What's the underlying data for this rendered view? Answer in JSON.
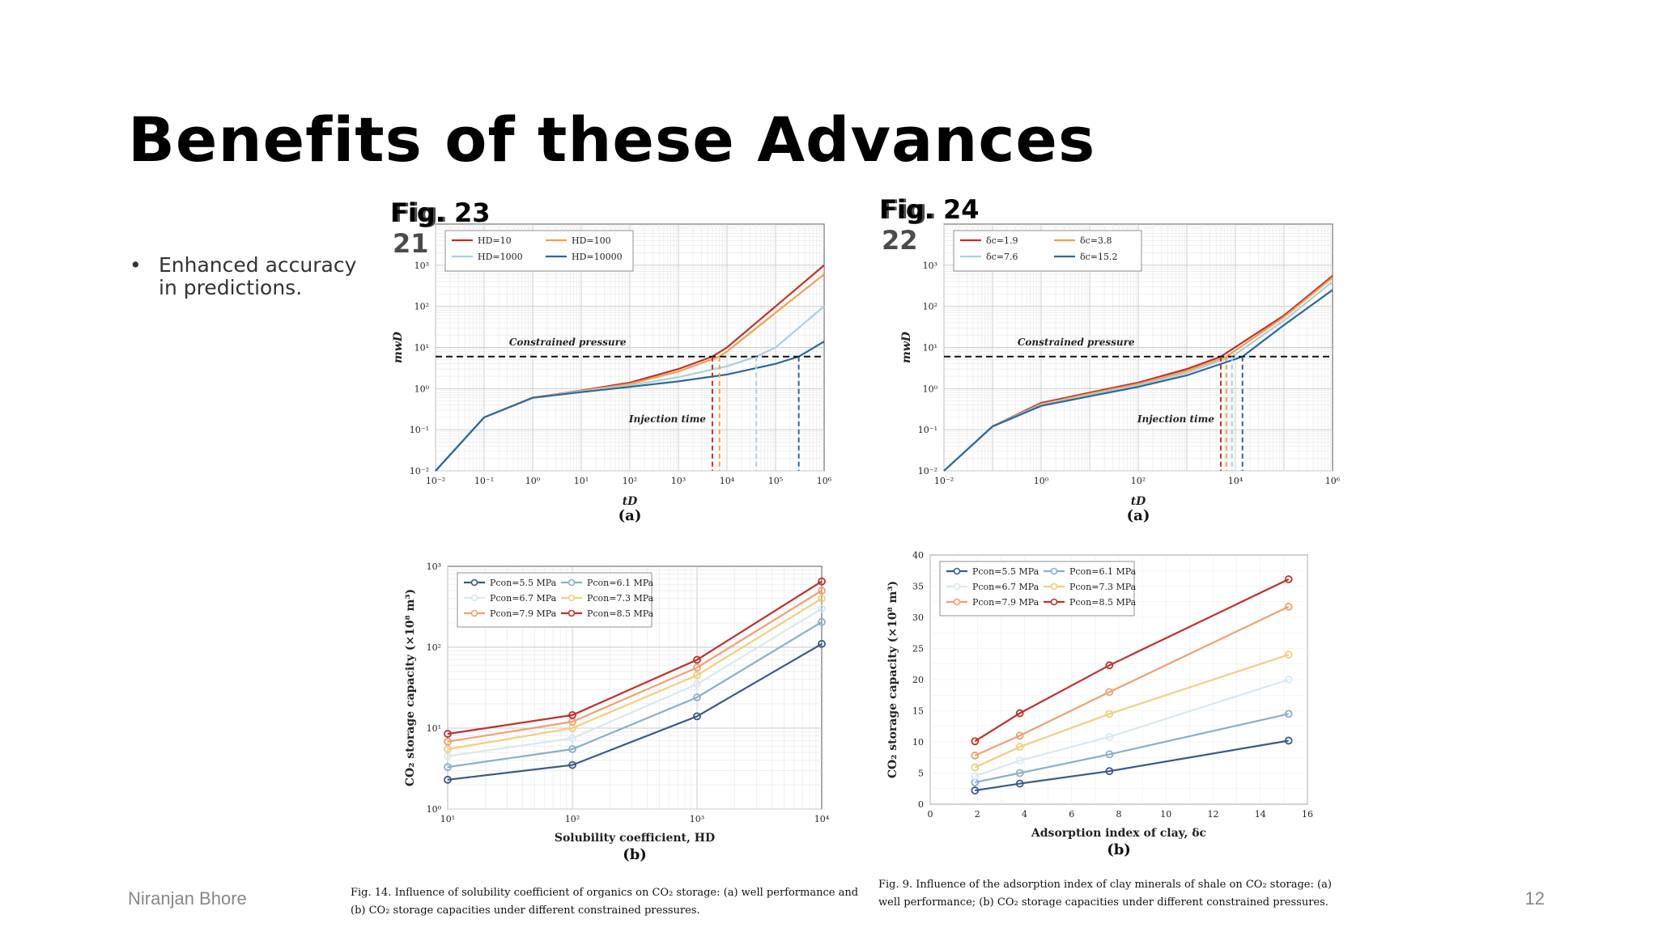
{
  "slide": {
    "title": "Benefits of these Advances",
    "bullet_symbol": "•",
    "bullets": [
      "Enhanced accuracy in predictions."
    ],
    "footer_author": "Niranjan Bhore",
    "page_number": "12",
    "fig_left_label": "Fig. 23",
    "fig_left_label_ghost": "Fig. 21",
    "fig_right_label": "Fig. 24",
    "fig_right_label_ghost": "Fig. 22",
    "caption_left": "Fig. 14. Influence of solubility coefficient of organics on CO₂ storage: (a) well performance and (b) CO₂ storage capacities under different constrained pressures.",
    "caption_right": "Fig. 9. Influence of the adsorption index of clay minerals of shale on CO₂ storage: (a) well performance; (b) CO₂ storage capacities under different constrained pressures."
  },
  "chart_data": [
    {
      "id": "tl",
      "type": "line",
      "subplot": "(a)",
      "xlabel": "tD",
      "ylabel": "mwD",
      "xscale": "log",
      "yscale": "log",
      "xlim": [
        0.01,
        1000000
      ],
      "ylim": [
        0.01,
        10000
      ],
      "xticks": [
        "10⁻²",
        "10⁻¹",
        "10⁰",
        "10¹",
        "10²",
        "10³",
        "10⁴",
        "10⁵",
        "10⁶"
      ],
      "yticks": [
        "10⁻²",
        "10⁻¹",
        "10⁰",
        "10¹",
        "10²",
        "10³"
      ],
      "legend": "top-left",
      "annotations": [
        "Constrained pressure",
        "Injection time"
      ],
      "constrained_pressure": 6,
      "series": [
        {
          "name": "HD=10",
          "color": "#c0302c",
          "x": [
            0.01,
            0.1,
            1,
            10,
            100,
            1000,
            5000,
            10000,
            100000,
            1000000
          ],
          "y": [
            0.01,
            0.2,
            0.6,
            0.9,
            1.4,
            3,
            6,
            10,
            100,
            1000
          ]
        },
        {
          "name": "HD=100",
          "color": "#f0a050",
          "x": [
            0.01,
            0.1,
            1,
            10,
            100,
            1000,
            7000,
            10000,
            100000,
            1000000
          ],
          "y": [
            0.01,
            0.2,
            0.6,
            0.88,
            1.3,
            2.6,
            6,
            8,
            70,
            600
          ]
        },
        {
          "name": "HD=1000",
          "color": "#a8d0e0",
          "x": [
            0.01,
            0.1,
            1,
            10,
            100,
            1000,
            10000,
            40000,
            100000,
            1000000
          ],
          "y": [
            0.01,
            0.2,
            0.6,
            0.85,
            1.2,
            1.9,
            3.5,
            6,
            10,
            100
          ]
        },
        {
          "name": "HD=10000",
          "color": "#2a6a9a",
          "x": [
            0.01,
            0.1,
            1,
            10,
            100,
            1000,
            10000,
            100000,
            300000,
            1000000
          ],
          "y": [
            0.01,
            0.2,
            0.6,
            0.82,
            1.1,
            1.5,
            2.2,
            4,
            6,
            14
          ]
        }
      ],
      "injection_times": [
        5000,
        7000,
        40000,
        300000
      ]
    },
    {
      "id": "tr",
      "type": "line",
      "subplot": "(a)",
      "xlabel": "tD",
      "ylabel": "mwD",
      "xscale": "log",
      "yscale": "log",
      "xlim": [
        0.01,
        1000000
      ],
      "ylim": [
        0.01,
        10000
      ],
      "xticks": [
        "10⁻²",
        "10⁰",
        "10²",
        "10⁴",
        "10⁶"
      ],
      "yticks": [
        "10⁻²",
        "10⁻¹",
        "10⁰",
        "10¹",
        "10²",
        "10³"
      ],
      "legend": "top-left",
      "annotations": [
        "Constrained pressure",
        "Injection time"
      ],
      "constrained_pressure": 6,
      "series": [
        {
          "name": "δc=1.9",
          "color": "#c0302c",
          "x": [
            0.01,
            0.1,
            1,
            10,
            100,
            1000,
            5000,
            100000,
            1000000
          ],
          "y": [
            0.01,
            0.12,
            0.45,
            0.8,
            1.4,
            3,
            6,
            60,
            550
          ]
        },
        {
          "name": "δc=3.8",
          "color": "#f0a050",
          "x": [
            0.01,
            0.1,
            1,
            10,
            100,
            1000,
            6500,
            100000,
            1000000
          ],
          "y": [
            0.01,
            0.12,
            0.42,
            0.75,
            1.3,
            2.7,
            6,
            55,
            500
          ]
        },
        {
          "name": "δc=7.6",
          "color": "#a8d0e0",
          "x": [
            0.01,
            0.1,
            1,
            10,
            100,
            1000,
            8500,
            100000,
            1000000
          ],
          "y": [
            0.01,
            0.12,
            0.4,
            0.7,
            1.2,
            2.4,
            6,
            45,
            400
          ]
        },
        {
          "name": "δc=15.2",
          "color": "#2a6a9a",
          "x": [
            0.01,
            0.1,
            1,
            10,
            100,
            1000,
            14000,
            100000,
            1000000
          ],
          "y": [
            0.01,
            0.12,
            0.38,
            0.65,
            1.1,
            2.1,
            6,
            35,
            250
          ]
        }
      ],
      "injection_times": [
        5000,
        6500,
        8500,
        14000
      ]
    },
    {
      "id": "bl",
      "type": "line",
      "subplot": "(b)",
      "xlabel": "Solubility coefficient, HD",
      "ylabel": "CO₂ storage capacity (×10⁸ m³)",
      "xscale": "log",
      "yscale": "log",
      "xlim": [
        10,
        10000
      ],
      "ylim": [
        1,
        1000
      ],
      "xticks": [
        "10¹",
        "10²",
        "10³",
        "10⁴"
      ],
      "yticks": [
        "10⁰",
        "10¹",
        "10²",
        "10³"
      ],
      "legend": "top-left",
      "categories": [
        10,
        100,
        1000,
        10000
      ],
      "series": [
        {
          "name": "Pcon=5.5 MPa",
          "color": "#3a5a8a",
          "values": [
            2.3,
            3.5,
            14,
            110
          ]
        },
        {
          "name": "Pcon=6.1 MPa",
          "color": "#8ab0c8",
          "values": [
            3.3,
            5.5,
            24,
            205
          ]
        },
        {
          "name": "Pcon=6.7 MPa",
          "color": "#d8e8f0",
          "values": [
            4.5,
            7.5,
            35,
            300
          ]
        },
        {
          "name": "Pcon=7.3 MPa",
          "color": "#f0d080",
          "values": [
            5.5,
            10,
            45,
            400
          ]
        },
        {
          "name": "Pcon=7.9 MPa",
          "color": "#f0a070",
          "values": [
            6.8,
            12,
            56,
            500
          ]
        },
        {
          "name": "Pcon=8.5 MPa",
          "color": "#c0302c",
          "values": [
            8.5,
            14.5,
            70,
            650
          ]
        }
      ]
    },
    {
      "id": "br",
      "type": "line",
      "subplot": "(b)",
      "xlabel": "Adsorption index of clay, δc",
      "ylabel": "CO₂ storage capacity (×10⁸ m³)",
      "xscale": "linear",
      "yscale": "linear",
      "xlim": [
        0,
        16
      ],
      "ylim": [
        0,
        40
      ],
      "xticks": [
        "0",
        "2",
        "4",
        "6",
        "8",
        "10",
        "12",
        "14",
        "16"
      ],
      "yticks": [
        "0",
        "5",
        "10",
        "15",
        "20",
        "25",
        "30",
        "35",
        "40"
      ],
      "legend": "top-left",
      "categories": [
        1.9,
        3.8,
        7.6,
        15.2
      ],
      "series": [
        {
          "name": "Pcon=5.5 MPa",
          "color": "#3a5a8a",
          "values": [
            2.2,
            3.3,
            5.3,
            10.2
          ]
        },
        {
          "name": "Pcon=6.1 MPa",
          "color": "#8ab0c8",
          "values": [
            3.5,
            5,
            8,
            14.5
          ]
        },
        {
          "name": "Pcon=6.7 MPa",
          "color": "#d8e8f0",
          "values": [
            4.5,
            7,
            10.8,
            20
          ]
        },
        {
          "name": "Pcon=7.3 MPa",
          "color": "#f0d080",
          "values": [
            5.9,
            9.2,
            14.5,
            24
          ]
        },
        {
          "name": "Pcon=7.9 MPa",
          "color": "#f0a070",
          "values": [
            7.8,
            11,
            18,
            31.7
          ]
        },
        {
          "name": "Pcon=8.5 MPa",
          "color": "#c0302c",
          "values": [
            10.1,
            14.6,
            22.3,
            36.1
          ]
        }
      ]
    }
  ]
}
